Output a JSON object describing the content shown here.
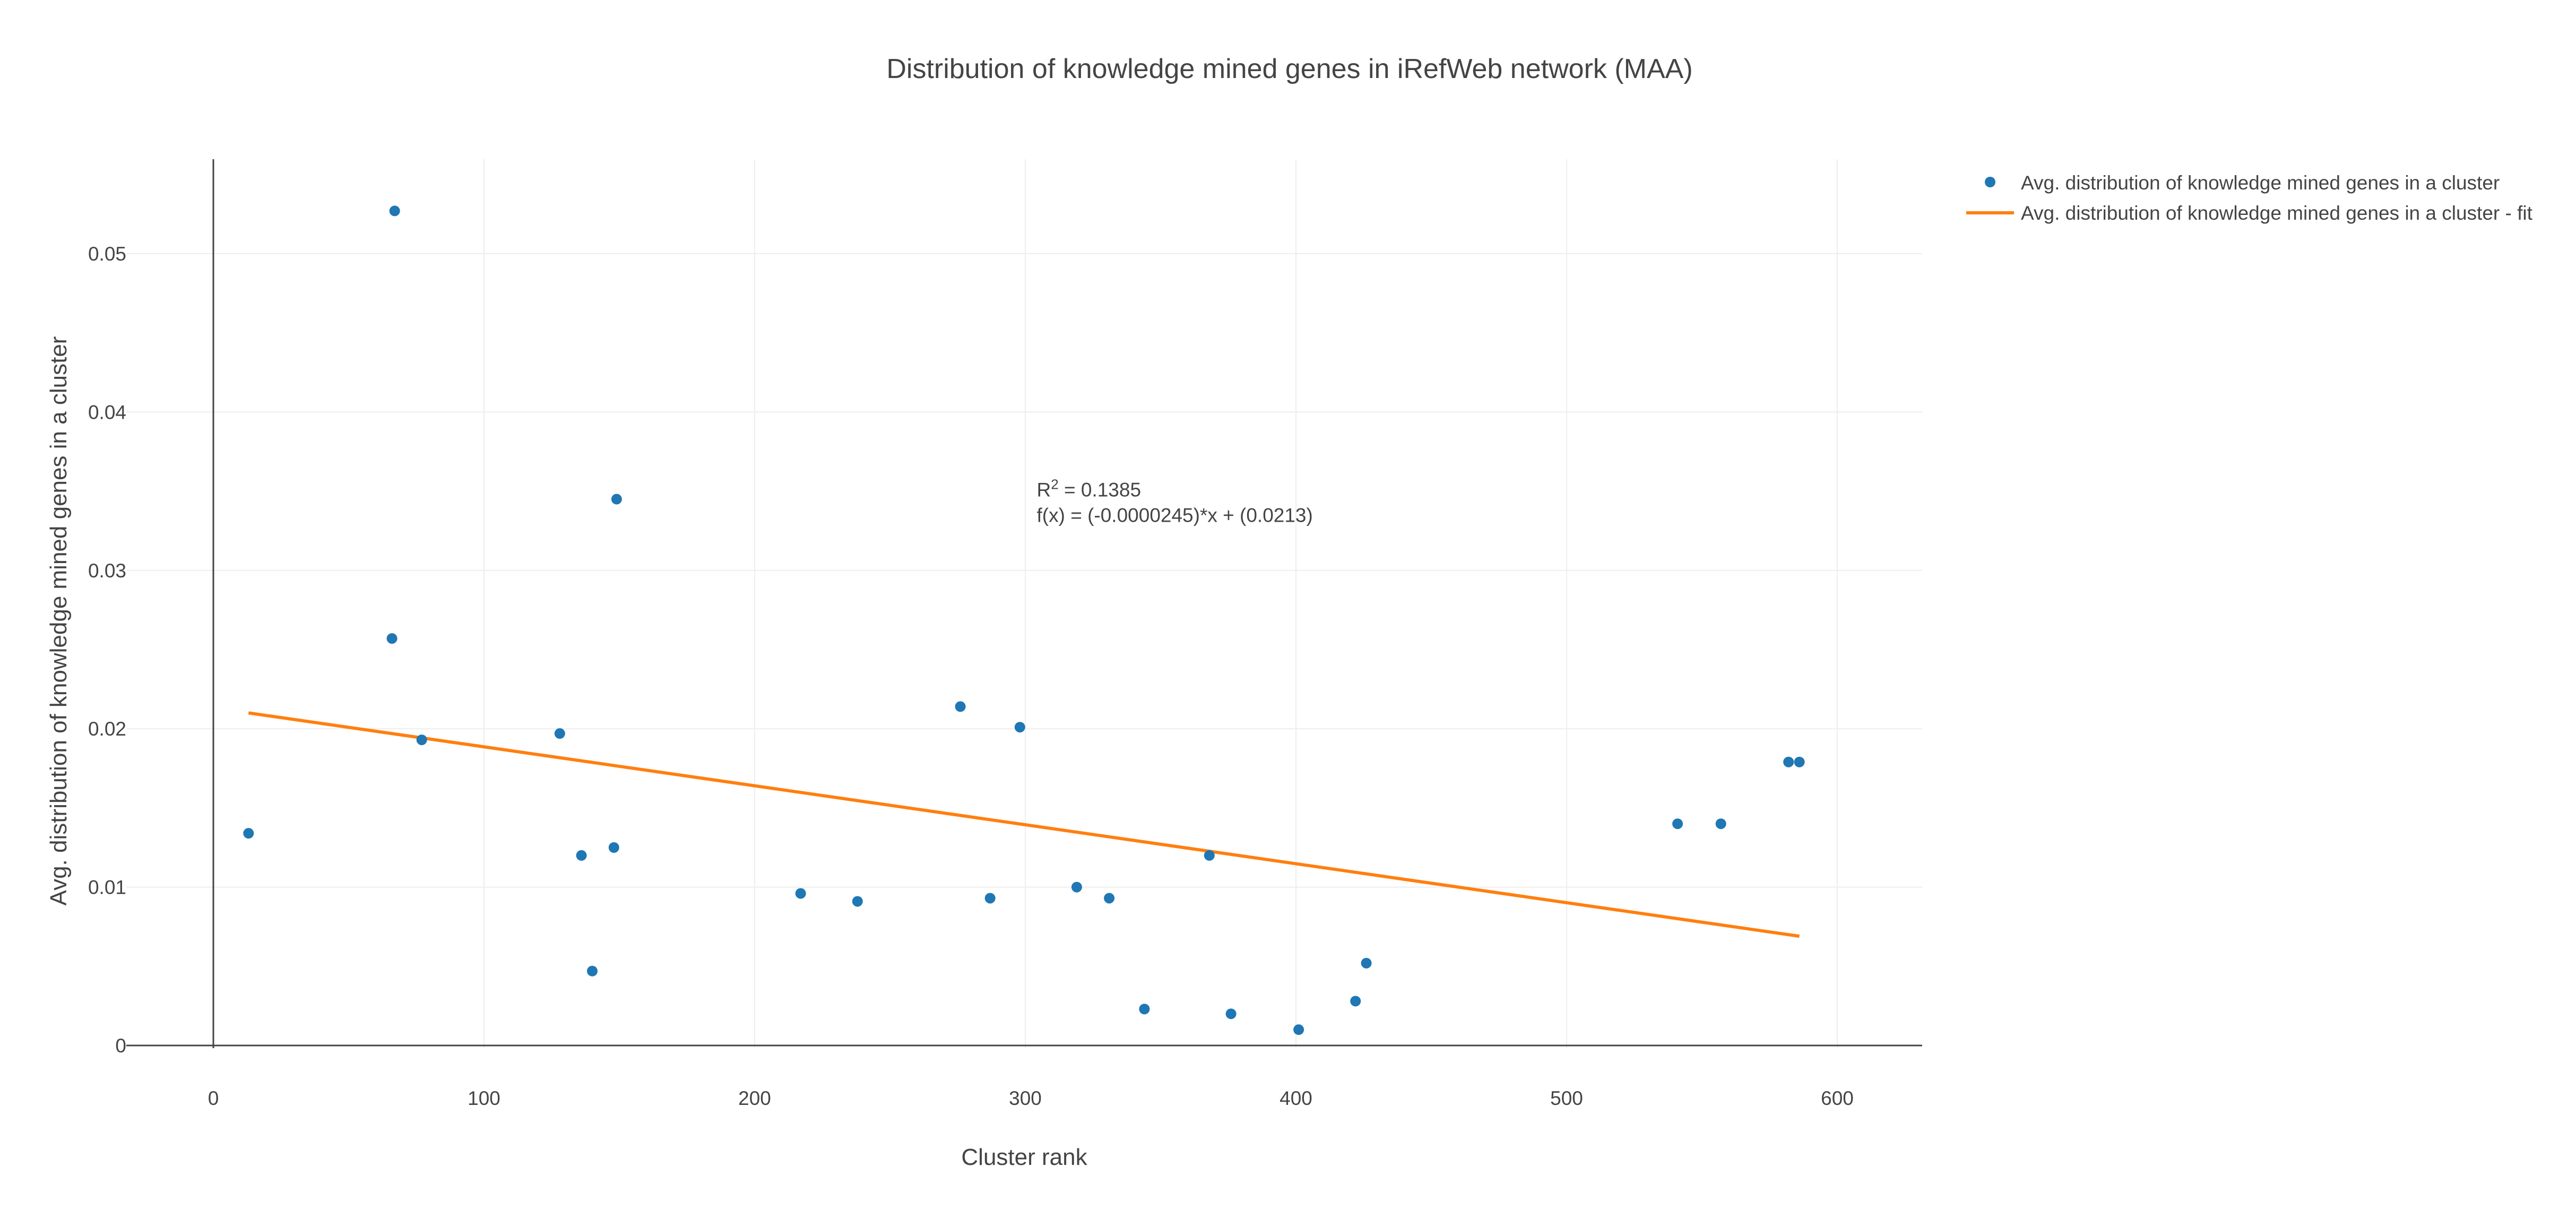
{
  "chart_data": {
    "type": "scatter",
    "title": "Distribution of knowledge mined genes in iRefWeb network (MAA)",
    "xlabel": "Cluster rank",
    "ylabel": "Avg. distribution of knowledge mined genes in a cluster",
    "xlim": [
      -32,
      632
    ],
    "ylim": [
      -0.0005,
      0.056
    ],
    "xticks": [
      0,
      100,
      200,
      300,
      400,
      500,
      600
    ],
    "xtick_labels": [
      "0",
      "100",
      "200",
      "300",
      "400",
      "500",
      "600"
    ],
    "yticks": [
      0,
      0.01,
      0.02,
      0.03,
      0.04,
      0.05
    ],
    "ytick_labels": [
      "0",
      "0.01",
      "0.02",
      "0.03",
      "0.04",
      "0.05"
    ],
    "grid": true,
    "legend_position": "top-right",
    "colors": {
      "points": "#1f77b4",
      "fit": "#ff7f0e"
    },
    "series": [
      {
        "name": "Avg. distribution of knowledge mined genes in a cluster",
        "mode": "markers",
        "x": [
          13,
          66,
          67,
          77,
          128,
          136,
          140,
          148,
          149,
          217,
          238,
          276,
          287,
          298,
          319,
          331,
          344,
          368,
          376,
          401,
          422,
          426,
          541,
          557,
          582,
          586
        ],
        "y": [
          0.0134,
          0.0257,
          0.0527,
          0.0193,
          0.0197,
          0.012,
          0.0047,
          0.0125,
          0.0345,
          0.0096,
          0.0091,
          0.0214,
          0.0093,
          0.0201,
          0.01,
          0.0093,
          0.0023,
          0.012,
          0.002,
          0.001,
          0.0028,
          0.0052,
          0.014,
          0.014,
          0.0179,
          0.0179
        ]
      },
      {
        "name": "Avg. distribution of knowledge mined genes in a cluster - fit",
        "mode": "line",
        "x": [
          13,
          586
        ],
        "y": [
          0.021,
          0.0069
        ]
      }
    ],
    "annotation": {
      "r2_prefix": "R",
      "r2_sup": "2",
      "r2_suffix": " = 0.1385",
      "formula": "f(x) = (-0.0000245)*x + (0.0213)",
      "x": 305,
      "y": 0.035
    }
  }
}
